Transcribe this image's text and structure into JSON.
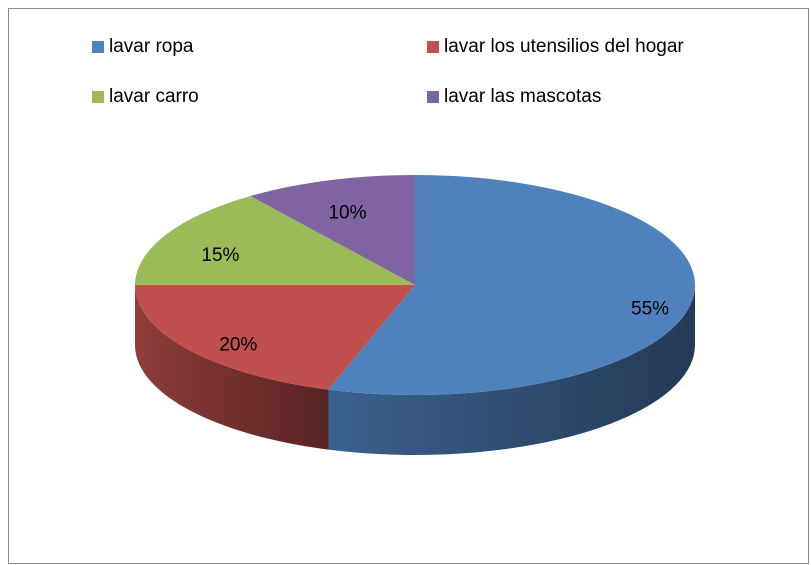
{
  "chart_data": {
    "type": "pie",
    "categories": [
      "lavar ropa",
      "lavar los utensilios del hogar",
      "lavar carro",
      "lavar las mascotas"
    ],
    "values": [
      55,
      20,
      15,
      10
    ],
    "value_labels": [
      "55%",
      "20%",
      "15%",
      "10%"
    ],
    "colors": [
      "#4f81bd",
      "#c0504d",
      "#9bbb59",
      "#8064a2"
    ],
    "legend": "top"
  }
}
